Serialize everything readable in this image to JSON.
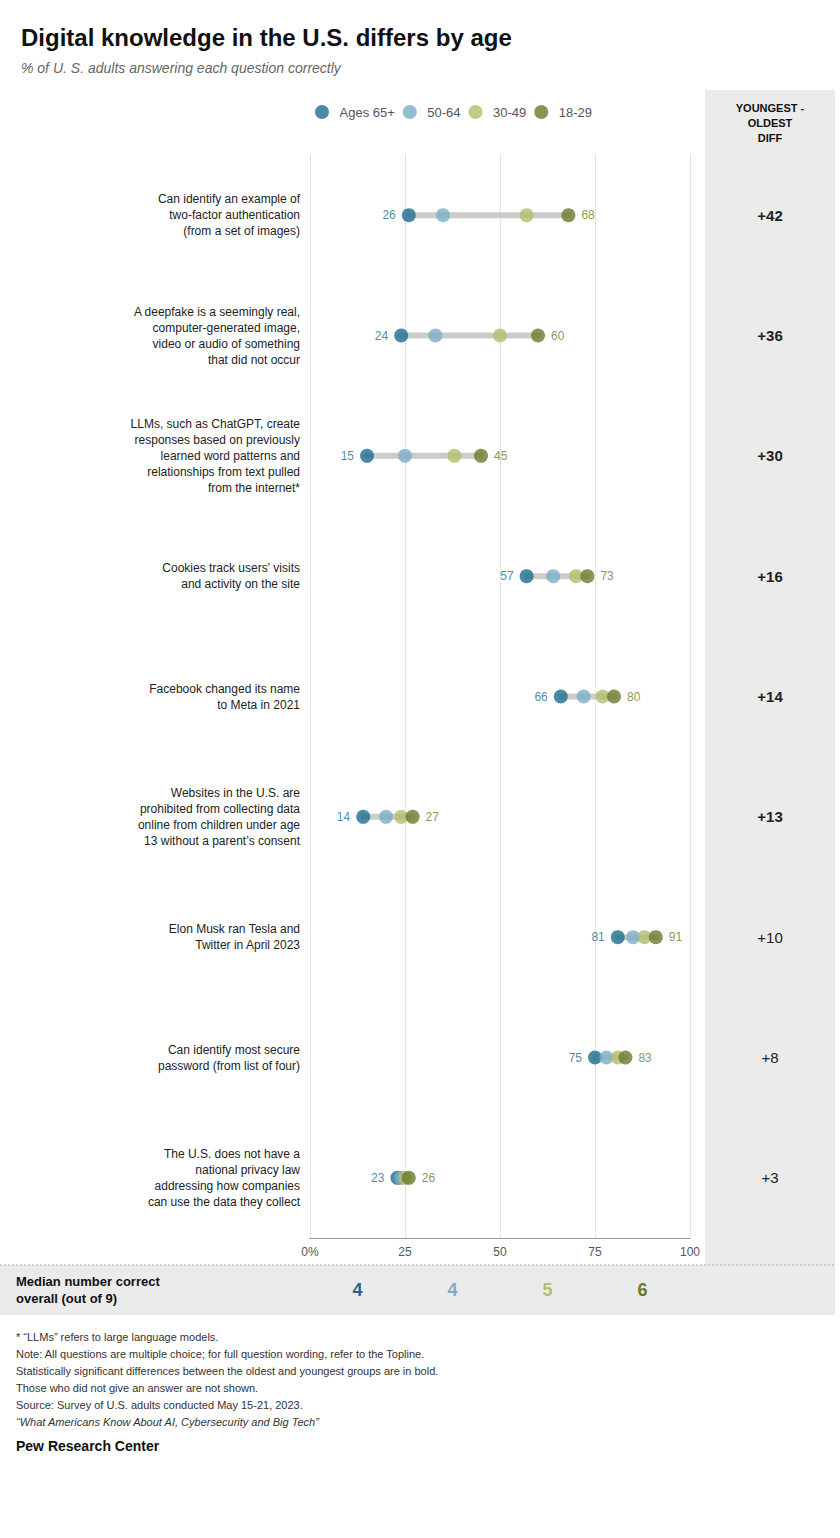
{
  "chart_data": {
    "type": "scatter",
    "orientation": "horizontal",
    "title": "Digital knowledge in the U.S. differs by age",
    "subtitle": "% of U. S. adults answering each question correctly",
    "categories": [
      "Can identify an example of\ntwo-factor authentication\n(from a set of images)",
      "A deepfake is a seemingly real,\ncomputer-generated image,\nvideo or audio of something\nthat did not occur",
      "LLMs, such as ChatGPT, create\nresponses based on previously\nlearned word patterns and\nrelationships from text pulled\nfrom the internet*",
      "Cookies track users' visits\nand activity on the site",
      "Facebook changed its name\nto Meta in 2021",
      "Websites in the U.S. are\nprohibited from collecting data\nonline from children under age\n13 without a parent’s consent",
      "Elon Musk ran Tesla and\nTwitter in April 2023",
      "Can identify most secure\npassword (from list of four)",
      "The U.S. does not have a\nnational privacy law\naddressing how companies\ncan use the data they collect"
    ],
    "series": [
      {
        "name": "Ages 65+",
        "color": "#1f6b8e",
        "values": [
          26,
          24,
          15,
          57,
          66,
          14,
          81,
          75,
          23
        ],
        "data_labels": true
      },
      {
        "name": "50-64",
        "color": "#7aafc4",
        "values": [
          35,
          33,
          25,
          64,
          72,
          20,
          85,
          78,
          24
        ]
      },
      {
        "name": "30-49",
        "color": "#b5bd6c",
        "values": [
          57,
          50,
          38,
          70,
          77,
          24,
          88,
          81,
          25
        ]
      },
      {
        "name": "18-29",
        "color": "#6b7a2a",
        "values": [
          68,
          60,
          45,
          73,
          80,
          27,
          91,
          83,
          26
        ],
        "data_labels": true
      }
    ],
    "xlim": [
      0,
      100
    ],
    "xticks": [
      {
        "value": 0,
        "label": "0%"
      },
      25,
      50,
      75,
      100
    ],
    "grid": true,
    "legend": "top",
    "diff_header": "YOUNGEST -\nOLDEST\nDIFF",
    "diffs": [
      "+42",
      "+36",
      "+30",
      "+16",
      "+14",
      "+13",
      "+10",
      "+8",
      "+3"
    ],
    "significant": [
      true,
      true,
      true,
      true,
      true,
      true,
      false,
      false,
      false
    ],
    "median_label": "Median number correct\noverall (out of 9)",
    "medians": [
      4,
      4,
      5,
      6
    ],
    "footnotes": [
      "* “LLMs” refers to large language models.",
      "Note: All questions are multiple choice; for full question wording, refer to the Topline.",
      "Statistically significant differences between the oldest and youngest groups are in bold.",
      "Those who did not give an answer are not shown.",
      "Source: Survey of U.S. adults conducted May 15-21, 2023.",
      "“What Americans Know About AI, Cybersecurity and Big Tech”"
    ],
    "source": "Pew Research Center"
  }
}
